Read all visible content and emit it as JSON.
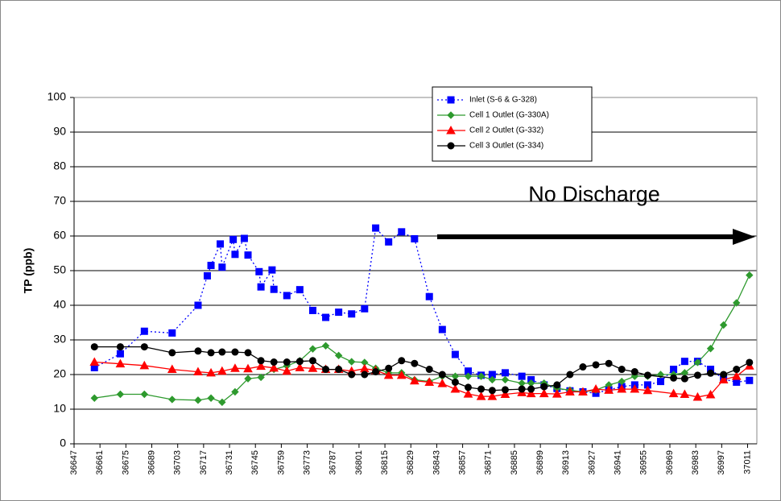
{
  "chart_data": {
    "type": "line",
    "y_label": "TP (ppb)",
    "annotation": "No Discharge",
    "xlim": [
      36647,
      37016
    ],
    "xticks": [
      36647,
      36661,
      36675,
      36689,
      36703,
      36717,
      36731,
      36745,
      36759,
      36773,
      36787,
      36801,
      36815,
      36829,
      36843,
      36857,
      36871,
      36885,
      36899,
      36913,
      36927,
      36941,
      36955,
      36969,
      36983,
      36997,
      37011
    ],
    "ylim": [
      0,
      100
    ],
    "yticks": [
      0,
      10,
      20,
      30,
      40,
      50,
      60,
      70,
      80,
      90,
      100
    ],
    "grid": true,
    "series": [
      {
        "name": "Inlet (S-6 & G-328)",
        "color": "#0000ff",
        "marker": "square",
        "dash": "dotted",
        "x": [
          36658,
          36672,
          36685,
          36700,
          36714,
          36719,
          36721,
          36726,
          36727,
          36733,
          36734,
          36739,
          36741,
          36747,
          36748,
          36754,
          36755,
          36762,
          36769,
          36776,
          36783,
          36790,
          36797,
          36804,
          36810,
          36817,
          36824,
          36831,
          36839,
          36846,
          36853,
          36860,
          36867,
          36873,
          36880,
          36889,
          36894,
          36901,
          36908,
          36915,
          36922,
          36929,
          36936,
          36943,
          36950,
          36957,
          36964,
          36971,
          36977,
          36984,
          36991,
          36998,
          37005,
          37012
        ],
        "values": [
          22,
          26,
          32.5,
          32,
          40,
          48.5,
          51.5,
          57.7,
          51,
          59,
          54.7,
          59.3,
          54.5,
          49.7,
          45.3,
          50.2,
          44.6,
          42.8,
          44.5,
          38.5,
          36.5,
          38,
          37.5,
          39,
          62.3,
          58.3,
          61.2,
          59.2,
          42.5,
          33,
          25.8,
          21,
          19.8,
          20,
          20.5,
          19.5,
          18.5,
          17,
          16,
          15.3,
          15,
          14.6,
          15.6,
          16.5,
          17,
          17,
          18,
          21.5,
          23.8,
          23.8,
          21.5,
          18.7,
          17.8,
          18.3
        ]
      },
      {
        "name": "Cell 1 Outlet (G-330A)",
        "color": "#2e9a2e",
        "marker": "diamond",
        "dash": "solid",
        "x": [
          36658,
          36672,
          36685,
          36700,
          36714,
          36721,
          36727,
          36734,
          36741,
          36748,
          36755,
          36762,
          36769,
          36776,
          36783,
          36790,
          36797,
          36804,
          36810,
          36817,
          36824,
          36831,
          36839,
          36846,
          36853,
          36860,
          36867,
          36873,
          36880,
          36889,
          36894,
          36901,
          36908,
          36915,
          36922,
          36929,
          36936,
          36943,
          36950,
          36957,
          36964,
          36971,
          36977,
          36984,
          36991,
          36998,
          37005,
          37012
        ],
        "values": [
          13.2,
          14.3,
          14.3,
          12.8,
          12.6,
          13.2,
          12,
          15,
          18.8,
          19.2,
          21.5,
          22.5,
          24,
          27.4,
          28.3,
          25.5,
          23.7,
          23.5,
          21.8,
          20.5,
          20.5,
          18.5,
          18,
          19.5,
          19.5,
          19.5,
          19.5,
          18.5,
          18.5,
          17.5,
          17.5,
          17.5,
          16,
          15.5,
          15,
          15.5,
          17,
          18,
          19.5,
          19.5,
          20,
          20,
          20.5,
          23.5,
          27.5,
          34.3,
          40.7,
          48.7
        ]
      },
      {
        "name": "Cell 2 Outlet (G-332)",
        "color": "#ff0000",
        "marker": "triangle",
        "dash": "solid",
        "x": [
          36658,
          36672,
          36685,
          36700,
          36714,
          36721,
          36727,
          36734,
          36741,
          36748,
          36755,
          36762,
          36769,
          36776,
          36783,
          36790,
          36797,
          36804,
          36810,
          36817,
          36824,
          36831,
          36839,
          36846,
          36853,
          36860,
          36867,
          36873,
          36880,
          36889,
          36894,
          36901,
          36908,
          36915,
          36922,
          36929,
          36936,
          36943,
          36950,
          36957,
          36971,
          36977,
          36984,
          36991,
          36998,
          37005,
          37012
        ],
        "values": [
          23.6,
          23.1,
          22.6,
          21.5,
          20.8,
          20.5,
          21,
          21.8,
          21.7,
          22.4,
          21.9,
          21,
          22,
          21.8,
          21.5,
          21.5,
          21,
          21.7,
          21.2,
          19.8,
          19.8,
          18.2,
          17.8,
          17.4,
          15.8,
          14.4,
          13.7,
          13.7,
          14.3,
          14.8,
          14.5,
          14.5,
          14.4,
          15,
          15,
          15.8,
          15.5,
          15.8,
          15.8,
          15.4,
          14.5,
          14.3,
          13.5,
          14.2,
          18.5,
          19.5,
          22.5
        ]
      },
      {
        "name": "Cell 3 Outlet (G-334)",
        "color": "#000000",
        "marker": "circle",
        "dash": "solid",
        "x": [
          36658,
          36672,
          36685,
          36700,
          36714,
          36721,
          36727,
          36734,
          36741,
          36748,
          36755,
          36762,
          36769,
          36776,
          36783,
          36790,
          36797,
          36804,
          36810,
          36817,
          36824,
          36831,
          36839,
          36846,
          36853,
          36860,
          36867,
          36873,
          36880,
          36889,
          36894,
          36901,
          36908,
          36915,
          36922,
          36929,
          36936,
          36943,
          36950,
          36957,
          36971,
          36977,
          36984,
          36991,
          36998,
          37005,
          37012
        ],
        "values": [
          28,
          28,
          28,
          26.3,
          26.8,
          26.3,
          26.5,
          26.5,
          26.3,
          24,
          23.6,
          23.6,
          23.8,
          24,
          21.5,
          21.5,
          20,
          20,
          20.8,
          21.8,
          24,
          23.2,
          21.5,
          20,
          17.8,
          16.3,
          15.8,
          15.4,
          15.6,
          15.8,
          15.8,
          16.5,
          17,
          20,
          22.2,
          22.8,
          23.2,
          21.5,
          20.8,
          19.8,
          19,
          18.8,
          19.8,
          20.4,
          20,
          21.5,
          23.5
        ]
      }
    ]
  }
}
